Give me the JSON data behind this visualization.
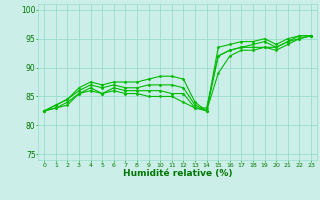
{
  "title": "",
  "xlabel": "Humidité relative (%)",
  "ylabel": "",
  "bg_color": "#cceee8",
  "grid_color": "#99ddcc",
  "line_color": "#00bb00",
  "tick_color": "#00aa00",
  "label_color": "#007700",
  "ylim": [
    74,
    101
  ],
  "xlim": [
    -0.5,
    23.5
  ],
  "yticks": [
    75,
    80,
    85,
    90,
    95,
    100
  ],
  "xticks": [
    0,
    1,
    2,
    3,
    4,
    5,
    6,
    7,
    8,
    9,
    10,
    11,
    12,
    13,
    14,
    15,
    16,
    17,
    18,
    19,
    20,
    21,
    22,
    23
  ],
  "lines": [
    [
      82.5,
      83.0,
      83.5,
      85.5,
      86.5,
      85.5,
      86.0,
      85.5,
      85.5,
      85.0,
      85.0,
      85.0,
      84.0,
      83.0,
      83.0,
      92.0,
      93.0,
      93.5,
      93.5,
      93.5,
      93.0,
      94.0,
      95.0,
      95.5
    ],
    [
      82.5,
      83.0,
      84.0,
      85.5,
      86.0,
      85.5,
      86.5,
      86.0,
      86.0,
      86.0,
      86.0,
      85.5,
      85.5,
      83.0,
      82.5,
      89.0,
      92.0,
      93.0,
      93.0,
      93.5,
      93.5,
      94.5,
      95.0,
      95.5
    ],
    [
      82.5,
      83.5,
      84.5,
      86.0,
      87.0,
      86.5,
      87.0,
      86.5,
      86.5,
      87.0,
      87.0,
      87.0,
      86.5,
      83.5,
      82.5,
      92.0,
      93.0,
      93.5,
      94.0,
      94.5,
      93.5,
      94.5,
      95.5,
      95.5
    ],
    [
      82.5,
      83.5,
      84.5,
      86.5,
      87.5,
      87.0,
      87.5,
      87.5,
      87.5,
      88.0,
      88.5,
      88.5,
      88.0,
      84.0,
      82.5,
      93.5,
      94.0,
      94.5,
      94.5,
      95.0,
      94.0,
      95.0,
      95.5,
      95.5
    ]
  ]
}
